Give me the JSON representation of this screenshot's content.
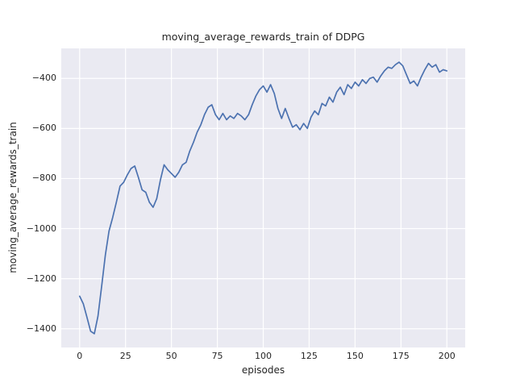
{
  "chart_data": {
    "type": "line",
    "title": "moving_average_rewards_train of DDPG",
    "xlabel": "episodes",
    "ylabel": "moving_average_rewards_train",
    "xlim": [
      -10,
      210
    ],
    "ylim": [
      -1475,
      -280
    ],
    "xticks": [
      0,
      25,
      50,
      75,
      100,
      125,
      150,
      175,
      200
    ],
    "yticks": [
      -400,
      -600,
      -800,
      -1000,
      -1200,
      -1400
    ],
    "grid": true,
    "legend": false,
    "plot_bg": "#eaeaf2",
    "grid_color": "#ffffff",
    "line_color": "#4c72b0",
    "x": [
      0,
      2,
      4,
      6,
      8,
      10,
      12,
      14,
      16,
      18,
      20,
      22,
      24,
      26,
      28,
      30,
      32,
      34,
      36,
      38,
      40,
      42,
      44,
      46,
      48,
      50,
      52,
      54,
      56,
      58,
      60,
      62,
      64,
      66,
      68,
      70,
      72,
      74,
      76,
      78,
      80,
      82,
      84,
      86,
      88,
      90,
      92,
      94,
      96,
      98,
      100,
      102,
      104,
      106,
      108,
      110,
      112,
      114,
      116,
      118,
      120,
      122,
      124,
      126,
      128,
      130,
      132,
      134,
      136,
      138,
      140,
      142,
      144,
      146,
      148,
      150,
      152,
      154,
      156,
      158,
      160,
      162,
      164,
      166,
      168,
      170,
      172,
      174,
      176,
      178,
      180,
      182,
      184,
      186,
      188,
      190,
      192,
      194,
      196,
      198,
      200
    ],
    "y": [
      -1270,
      -1300,
      -1355,
      -1410,
      -1420,
      -1350,
      -1230,
      -1105,
      -1010,
      -955,
      -895,
      -830,
      -815,
      -785,
      -760,
      -750,
      -795,
      -845,
      -855,
      -895,
      -915,
      -880,
      -805,
      -745,
      -765,
      -780,
      -795,
      -775,
      -745,
      -735,
      -690,
      -655,
      -615,
      -585,
      -545,
      -515,
      -505,
      -545,
      -565,
      -540,
      -565,
      -550,
      -560,
      -540,
      -550,
      -565,
      -545,
      -505,
      -470,
      -445,
      -430,
      -455,
      -425,
      -460,
      -520,
      -560,
      -520,
      -560,
      -595,
      -585,
      -605,
      -580,
      -600,
      -555,
      -530,
      -545,
      -500,
      -510,
      -475,
      -495,
      -455,
      -435,
      -465,
      -425,
      -440,
      -415,
      -430,
      -405,
      -420,
      -400,
      -395,
      -415,
      -390,
      -370,
      -355,
      -360,
      -345,
      -335,
      -350,
      -385,
      -420,
      -410,
      -430,
      -395,
      -365,
      -340,
      -355,
      -345,
      -375,
      -365,
      -370
    ]
  }
}
